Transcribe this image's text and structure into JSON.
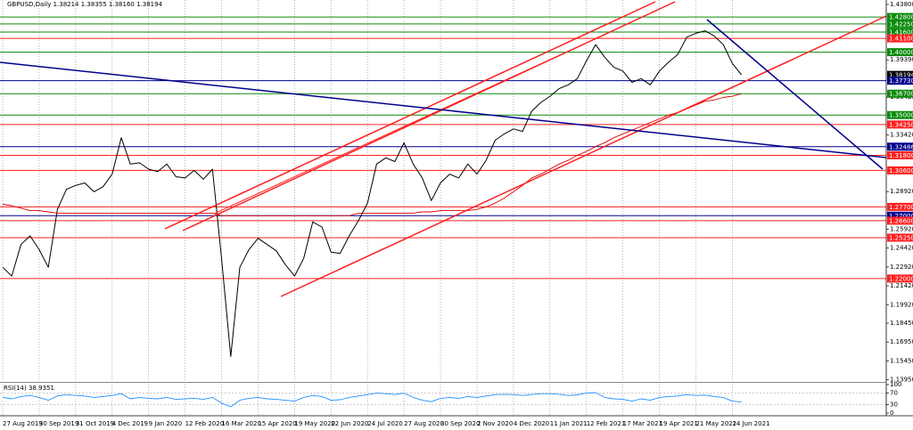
{
  "chart_data": [
    {
      "type": "line",
      "title": "GBPUSD,Daily 1.38214 1.38355 1.38160 1.38194",
      "categories": [
        "27 Aug 2019",
        null,
        null,
        null,
        "30 Sep 2019",
        null,
        null,
        null,
        "31 Oct 2019",
        null,
        null,
        null,
        "4 Dec 2019",
        null,
        null,
        null,
        "9 Jan 2020",
        null,
        null,
        null,
        "12 Feb 2020",
        null,
        null,
        null,
        "16 Mar 2020",
        null,
        null,
        null,
        "15 Apr 2020",
        null,
        null,
        null,
        "19 May 2020",
        null,
        null,
        null,
        "22 Jun 2020",
        null,
        null,
        null,
        "24 Jul 2020",
        null,
        null,
        null,
        "27 Aug 2020",
        null,
        null,
        null,
        "30 Sep 2020",
        null,
        null,
        null,
        "2 Nov 2020",
        null,
        null,
        null,
        "4 Dec 2020",
        null,
        null,
        null,
        "11 Jan 2021",
        null,
        null,
        null,
        "12 Feb 2021",
        null,
        null,
        null,
        "17 Mar 2021",
        null,
        null,
        null,
        "19 Apr 2021",
        null,
        null,
        null,
        "21 May 2021",
        null,
        null,
        null,
        "24 Jun 2021",
        null
      ],
      "series": [
        {
          "color": "#000000",
          "values": [
            1.229,
            1.222,
            1.247,
            1.254,
            1.243,
            1.229,
            1.275,
            1.291,
            1.294,
            1.296,
            1.289,
            1.293,
            1.303,
            1.332,
            1.311,
            1.312,
            1.307,
            1.305,
            1.311,
            1.301,
            1.3,
            1.306,
            1.299,
            1.307,
            1.236,
            1.158,
            1.229,
            1.243,
            1.252,
            1.247,
            1.242,
            1.231,
            1.222,
            1.236,
            1.265,
            1.261,
            1.241,
            1.24,
            1.254,
            1.266,
            1.28,
            1.311,
            1.316,
            1.313,
            1.328,
            1.311,
            1.3,
            1.282,
            1.296,
            1.303,
            1.3,
            1.311,
            1.303,
            1.314,
            1.33,
            1.335,
            1.339,
            1.337,
            1.353,
            1.36,
            1.365,
            1.371,
            1.374,
            1.379,
            1.393,
            1.406,
            1.396,
            1.388,
            1.385,
            1.376,
            1.379,
            1.374,
            1.385,
            1.392,
            1.398,
            1.412,
            1.415,
            1.417,
            1.413,
            1.406,
            1.391,
            1.382
          ]
        },
        {
          "color": "#e00000",
          "values": [
            1.279,
            1.278,
            1.276,
            1.274,
            1.274,
            1.273,
            1.272,
            1.272,
            1.272,
            1.272,
            1.272,
            1.272,
            1.272,
            1.272,
            1.272,
            1.272,
            1.272,
            1.272,
            1.272,
            1.272,
            1.272,
            1.272,
            1.272,
            1.272,
            1.27,
            1.27,
            1.27,
            1.27,
            1.27,
            1.27,
            1.27,
            1.27,
            1.27,
            1.27,
            1.27,
            1.27,
            1.27,
            1.27,
            1.27,
            1.272,
            1.272,
            1.272,
            1.272,
            1.272,
            1.272,
            1.272,
            1.273,
            1.273,
            1.274,
            1.274,
            1.274,
            1.274,
            1.275,
            1.277,
            1.28,
            1.284,
            1.289,
            1.294,
            1.3,
            1.303,
            1.307,
            1.311,
            1.314,
            1.318,
            1.321,
            1.325,
            1.328,
            1.332,
            1.335,
            1.338,
            1.341,
            1.344,
            1.347,
            1.35,
            1.352,
            1.355,
            1.358,
            1.361,
            1.362,
            1.364,
            1.365,
            1.367
          ]
        }
      ],
      "ylim": [
        1.1385,
        1.4415
      ],
      "yticks": [
        {
          "value": 1.438,
          "label": "1.43800"
        },
        {
          "value": 1.3939,
          "label": "1.39390"
        },
        {
          "value": 1.3642,
          "label": "1.36420"
        },
        {
          "value": 1.3342,
          "label": "1.33420"
        },
        {
          "value": 1.2892,
          "label": "1.28920"
        },
        {
          "value": 1.2592,
          "label": "1.25920"
        },
        {
          "value": 1.2442,
          "label": "1.24420"
        },
        {
          "value": 1.2292,
          "label": "1.22920"
        },
        {
          "value": 1.2142,
          "label": "1.21420"
        },
        {
          "value": 1.1992,
          "label": "1.19920"
        },
        {
          "value": 1.1845,
          "label": "1.18450"
        },
        {
          "value": 1.1695,
          "label": "1.16950"
        },
        {
          "value": 1.1545,
          "label": "1.15450"
        },
        {
          "value": 1.1395,
          "label": "1.13950"
        }
      ],
      "levels": [
        {
          "value": 1.428,
          "label": "1.42800",
          "color": "#0a8a0a"
        },
        {
          "value": 1.4225,
          "label": "1.42250",
          "color": "#0a8a0a"
        },
        {
          "value": 1.416,
          "label": "1.41600",
          "color": "#0a8a0a"
        },
        {
          "value": 1.411,
          "label": "1.41100",
          "color": "#ff2020"
        },
        {
          "value": 1.4,
          "label": "1.40000",
          "color": "#0a8a0a"
        },
        {
          "value": 1.38194,
          "label": "1.38194",
          "color": "#000000",
          "line": false
        },
        {
          "value": 1.3773,
          "label": "1.37730",
          "color": "#00008b"
        },
        {
          "value": 1.367,
          "label": "1.36700",
          "color": "#0a8a0a"
        },
        {
          "value": 1.35,
          "label": "1.35000",
          "color": "#0a8a0a"
        },
        {
          "value": 1.3425,
          "label": "1.34250",
          "color": "#ff2020"
        },
        {
          "value": 1.32486,
          "label": "1.32486",
          "color": "#00008b"
        },
        {
          "value": 1.318,
          "label": "1.31800",
          "color": "#ff2020"
        },
        {
          "value": 1.306,
          "label": "1.30600",
          "color": "#ff2020"
        },
        {
          "value": 1.277,
          "label": "1.27700",
          "color": "#ff2020"
        },
        {
          "value": 1.27,
          "label": "1.27000",
          "color": "#00008b"
        },
        {
          "value": 1.266,
          "label": "1.26600",
          "color": "#ff2020"
        },
        {
          "value": 1.2525,
          "label": "1.25250",
          "color": "#ff2020"
        },
        {
          "value": 1.22,
          "label": "1.22000",
          "color": "#ff2020"
        }
      ],
      "grid": true
    },
    {
      "type": "line",
      "title": "RSI(14) 38.9351",
      "series": [
        {
          "color": "#1e90ff",
          "values": [
            55,
            50,
            58,
            62,
            55,
            45,
            60,
            65,
            62,
            60,
            55,
            58,
            62,
            68,
            50,
            55,
            52,
            50,
            55,
            48,
            50,
            52,
            48,
            55,
            35,
            22,
            45,
            52,
            55,
            50,
            48,
            45,
            42,
            55,
            62,
            58,
            45,
            47,
            55,
            60,
            65,
            70,
            68,
            65,
            70,
            55,
            45,
            40,
            52,
            55,
            52,
            58,
            55,
            60,
            65,
            66,
            65,
            62,
            65,
            68,
            68,
            66,
            62,
            64,
            70,
            72,
            55,
            50,
            48,
            42,
            50,
            45,
            55,
            58,
            60,
            65,
            62,
            63,
            58,
            55,
            42,
            38.9
          ]
        }
      ],
      "ylim": [
        0,
        100
      ],
      "yticks": [
        100,
        70,
        30,
        0
      ]
    }
  ]
}
